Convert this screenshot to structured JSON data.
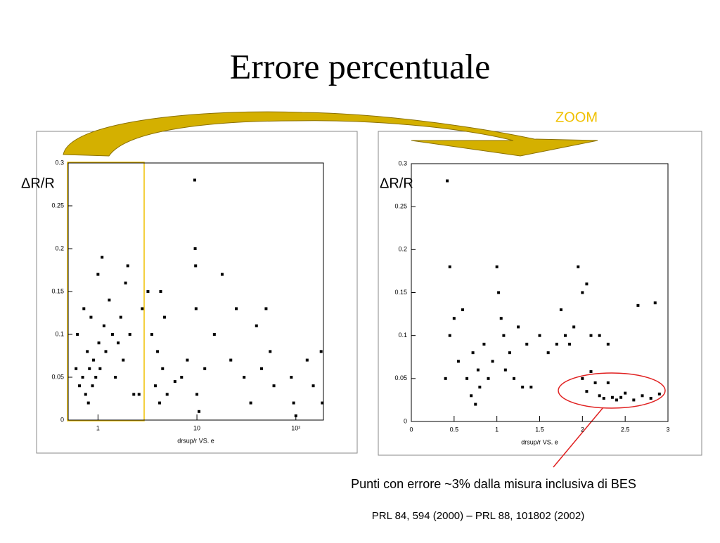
{
  "title": "Errore percentuale",
  "zoom_label": "ZOOM",
  "annotation": "Punti con errore ~3% dalla misura inclusiva di BES",
  "reference": "PRL 84, 594 (2000) – PRL 88, 101802 (2002)",
  "chart_data": [
    {
      "type": "scatter",
      "x_label": "drsup/r VS. e",
      "y_label": "ΔR/R",
      "log_x": true,
      "color": "#000000",
      "xlim": [
        0.5,
        190
      ],
      "ylim": [
        0,
        0.3
      ],
      "xticks": [
        1,
        10,
        {
          "value": 100,
          "label": "10²"
        }
      ],
      "yticks": [
        0,
        0.05,
        0.1,
        0.15,
        0.2,
        0.25,
        0.3
      ],
      "x": [
        0.6,
        0.62,
        0.65,
        0.7,
        0.72,
        0.75,
        0.78,
        0.8,
        0.82,
        0.85,
        0.88,
        0.9,
        0.95,
        1.0,
        1.02,
        1.05,
        1.1,
        1.15,
        1.2,
        1.3,
        1.4,
        1.5,
        1.6,
        1.7,
        1.8,
        1.9,
        2.0,
        2.1,
        2.3,
        2.6,
        2.8,
        3.2,
        3.5,
        3.8,
        4.0,
        4.2,
        4.3,
        4.5,
        4.7,
        5.0,
        6.0,
        7.0,
        8.0,
        9.5,
        9.6,
        9.7,
        9.8,
        10,
        10.5,
        12,
        15,
        18,
        22,
        25,
        30,
        35,
        40,
        45,
        50,
        55,
        60,
        90,
        95,
        100,
        130,
        150,
        180,
        185
      ],
      "values": [
        0.06,
        0.1,
        0.04,
        0.05,
        0.13,
        0.03,
        0.08,
        0.02,
        0.06,
        0.12,
        0.04,
        0.07,
        0.05,
        0.17,
        0.09,
        0.06,
        0.19,
        0.11,
        0.08,
        0.14,
        0.1,
        0.05,
        0.09,
        0.12,
        0.07,
        0.16,
        0.18,
        0.1,
        0.03,
        0.03,
        0.13,
        0.15,
        0.1,
        0.04,
        0.08,
        0.02,
        0.15,
        0.06,
        0.12,
        0.03,
        0.045,
        0.05,
        0.07,
        0.28,
        0.2,
        0.18,
        0.13,
        0.03,
        0.01,
        0.06,
        0.1,
        0.17,
        0.07,
        0.13,
        0.05,
        0.02,
        0.11,
        0.06,
        0.13,
        0.08,
        0.04,
        0.05,
        0.02,
        0.005,
        0.07,
        0.04,
        0.08,
        0.02
      ]
    },
    {
      "type": "scatter",
      "x_label": "drsup/r VS. e",
      "y_label": "ΔR/R",
      "log_x": false,
      "color": "#000000",
      "xlim": [
        0,
        3
      ],
      "ylim": [
        0,
        0.3
      ],
      "xticks": [
        0,
        0.5,
        1,
        1.5,
        2,
        2.5,
        3
      ],
      "yticks": [
        0,
        0.05,
        0.1,
        0.15,
        0.2,
        0.25,
        0.3
      ],
      "x": [
        0.42,
        0.45,
        0.4,
        0.45,
        0.5,
        0.55,
        0.6,
        0.65,
        0.7,
        0.72,
        0.75,
        0.78,
        0.8,
        0.85,
        0.9,
        0.95,
        1.0,
        1.02,
        1.05,
        1.08,
        1.1,
        1.15,
        1.2,
        1.25,
        1.3,
        1.35,
        1.4,
        1.5,
        1.6,
        1.7,
        1.75,
        1.8,
        1.85,
        1.9,
        1.95,
        2.0,
        2.05,
        2.1,
        2.2,
        2.3,
        2.0,
        2.05,
        2.1,
        2.15,
        2.2,
        2.25,
        2.3,
        2.35,
        2.4,
        2.45,
        2.5,
        2.6,
        2.7,
        2.8,
        2.9,
        2.65,
        2.85
      ],
      "values": [
        0.28,
        0.18,
        0.05,
        0.1,
        0.12,
        0.07,
        0.13,
        0.05,
        0.03,
        0.08,
        0.02,
        0.06,
        0.04,
        0.09,
        0.05,
        0.07,
        0.18,
        0.15,
        0.12,
        0.1,
        0.06,
        0.08,
        0.05,
        0.11,
        0.04,
        0.09,
        0.04,
        0.1,
        0.08,
        0.09,
        0.13,
        0.1,
        0.09,
        0.11,
        0.18,
        0.15,
        0.16,
        0.1,
        0.1,
        0.09,
        0.05,
        0.035,
        0.058,
        0.045,
        0.03,
        0.027,
        0.045,
        0.028,
        0.025,
        0.028,
        0.033,
        0.025,
        0.03,
        0.027,
        0.032,
        0.135,
        0.138
      ]
    }
  ]
}
